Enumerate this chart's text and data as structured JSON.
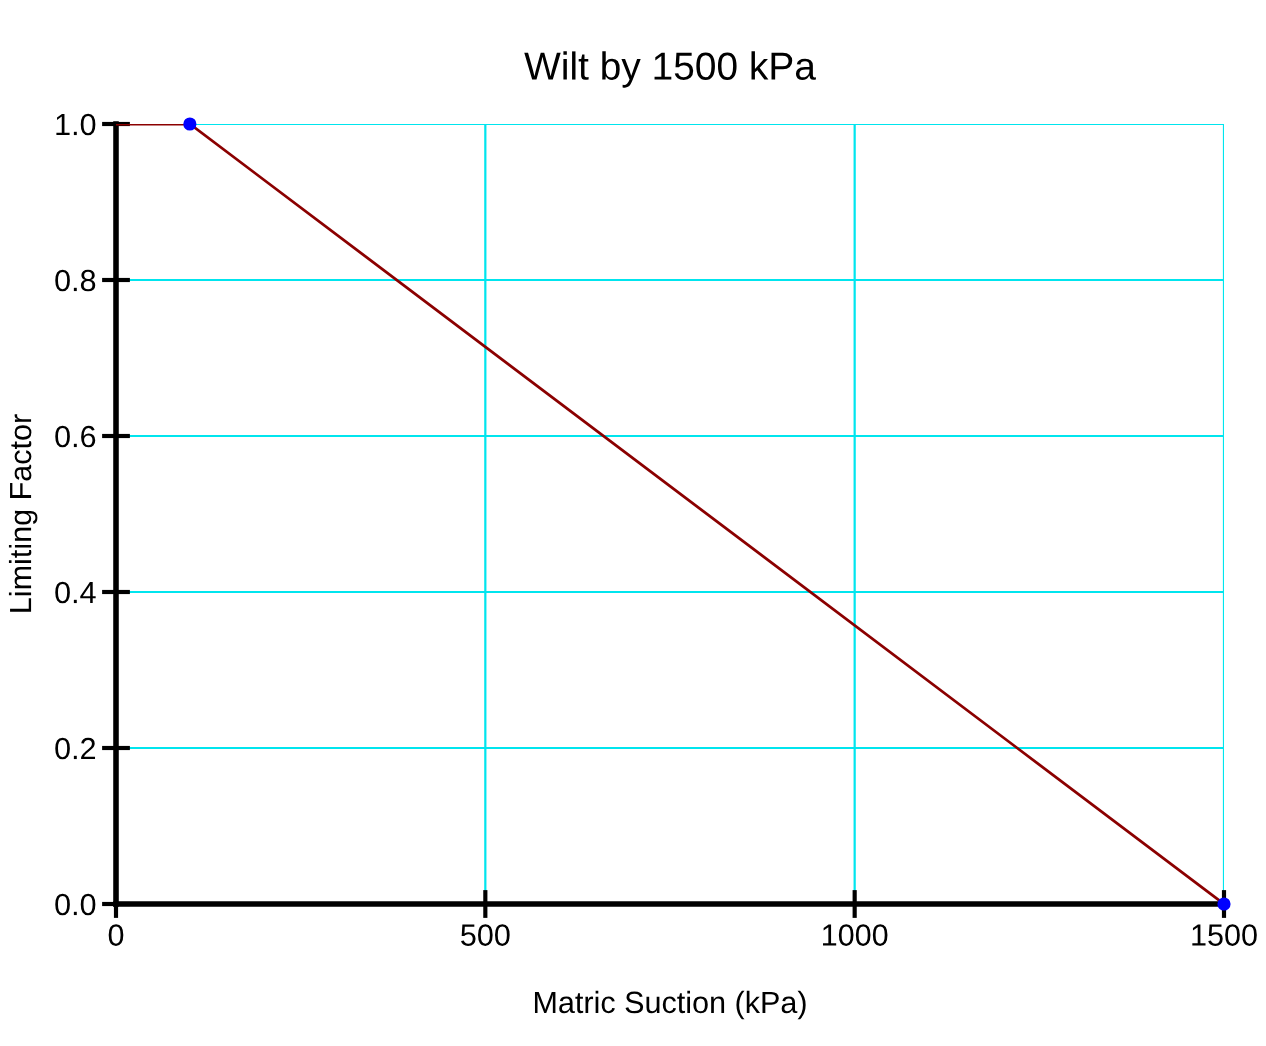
{
  "chart_data": {
    "type": "line",
    "title": "Wilt by 1500 kPa",
    "xlabel": "Matric Suction (kPa)",
    "ylabel": "Limiting Factor",
    "series": [
      {
        "type": "line",
        "color": "#8b0000",
        "x": [
          0,
          100,
          1500
        ],
        "values": [
          1.0,
          1.0,
          0.0
        ]
      },
      {
        "type": "scatter",
        "color": "#0000ff",
        "marker": "circle",
        "x": [
          100,
          1500
        ],
        "values": [
          1.0,
          0.0
        ]
      }
    ],
    "xlim": [
      0,
      1500
    ],
    "ylim": [
      0,
      1.0
    ],
    "xticks": [
      0,
      500,
      1000,
      1500
    ],
    "yticks": [
      {
        "value": 0,
        "label": "0.0"
      },
      {
        "value": 0.2,
        "label": "0.2"
      },
      {
        "value": 0.4,
        "label": "0.4"
      },
      {
        "value": 0.6,
        "label": "0.6"
      },
      {
        "value": 0.8,
        "label": "0.8"
      },
      {
        "value": 1.0,
        "label": "1.0"
      }
    ],
    "grid": true,
    "legend": false
  }
}
